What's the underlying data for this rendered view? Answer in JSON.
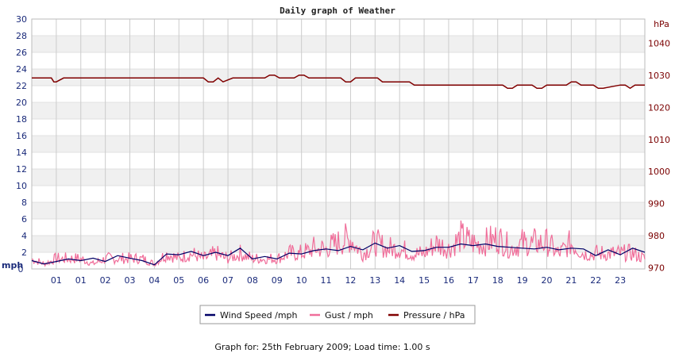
{
  "chart_data": {
    "type": "line",
    "title": "Daily graph of Weather",
    "left_unit": "mph",
    "right_unit": "hPa",
    "left_ylim": [
      0,
      30
    ],
    "left_ticks": [
      0,
      2,
      4,
      6,
      8,
      10,
      12,
      14,
      16,
      18,
      20,
      22,
      24,
      26,
      28,
      30
    ],
    "right_ylim": [
      969.6,
      1047.6
    ],
    "right_ticks": [
      970,
      980,
      990,
      1000,
      1010,
      1020,
      1030,
      1040
    ],
    "x_ticks": [
      "01",
      "01",
      "02",
      "03",
      "04",
      "05",
      "06",
      "07",
      "08",
      "09",
      "10",
      "11",
      "12",
      "13",
      "14",
      "15",
      "16",
      "17",
      "18",
      "19",
      "20",
      "21",
      "22",
      "23"
    ],
    "grid": true,
    "legend_placement": "bottom-center",
    "series": [
      {
        "name": "Wind Speed /mph",
        "color": "#000066",
        "axis": "left",
        "x": [
          0,
          0.5,
          1,
          1.5,
          2,
          2.5,
          3,
          3.5,
          4,
          4.5,
          5,
          5.5,
          6,
          6.5,
          7,
          7.5,
          8,
          8.5,
          9,
          9.5,
          10,
          10.5,
          11,
          11.5,
          12,
          12.5,
          13,
          13.5,
          14,
          14.5,
          15,
          15.5,
          16,
          16.5,
          17,
          17.5,
          18,
          18.5,
          19,
          19.5,
          20,
          20.5,
          21,
          21.5,
          22,
          22.5,
          23,
          23.5,
          24,
          24.5,
          25
        ],
        "values": [
          1.0,
          0.6,
          0.9,
          1.2,
          1.0,
          1.3,
          0.9,
          1.6,
          1.3,
          1.0,
          0.5,
          1.8,
          1.7,
          2.1,
          1.6,
          2.0,
          1.6,
          2.5,
          1.2,
          1.5,
          1.2,
          1.9,
          1.8,
          2.2,
          2.4,
          2.2,
          2.7,
          2.3,
          3.1,
          2.5,
          2.8,
          2.1,
          2.2,
          2.6,
          2.6,
          3.0,
          2.8,
          3.0,
          2.7,
          2.6,
          2.5,
          2.4,
          2.6,
          2.3,
          2.5,
          2.4,
          1.6,
          2.3,
          1.7,
          2.5,
          2.0
        ]
      },
      {
        "name": "Gust / mph",
        "color": "#f06e9a",
        "axis": "left",
        "x": [
          0,
          0.5,
          1,
          1.5,
          2,
          2.5,
          3,
          3.5,
          4,
          4.5,
          5,
          5.5,
          6,
          6.5,
          7,
          7.5,
          8,
          8.5,
          9,
          9.5,
          10,
          10.5,
          11,
          11.5,
          12,
          12.5,
          13,
          13.5,
          14,
          14.5,
          15,
          15.5,
          16,
          16.5,
          17,
          17.5,
          18,
          18.5,
          19,
          19.5,
          20,
          20.5,
          21,
          21.5,
          22,
          22.5,
          23,
          23.5,
          24,
          24.5,
          25
        ],
        "values": [
          2.0,
          1.0,
          2.0,
          2.0,
          2.0,
          1.0,
          2.0,
          2.0,
          2.0,
          2.0,
          1.0,
          3.0,
          2.0,
          3.0,
          2.0,
          3.0,
          2.0,
          3.0,
          2.0,
          2.0,
          2.0,
          3.0,
          3.0,
          4.0,
          4.0,
          5.0,
          6.0,
          3.0,
          5.0,
          4.0,
          4.0,
          3.0,
          3.0,
          5.0,
          4.0,
          6.0,
          5.0,
          5.0,
          6.0,
          4.0,
          5.0,
          5.0,
          5.0,
          3.0,
          5.0,
          3.0,
          3.0,
          3.0,
          3.0,
          3.0,
          2.0
        ]
      },
      {
        "name": "Pressure / hPa",
        "color": "#800000",
        "axis": "right",
        "x": [
          0,
          0.8,
          0.9,
          1.0,
          1.3,
          7.0,
          7.2,
          7.4,
          7.6,
          7.8,
          8.2,
          8.5,
          9.5,
          9.7,
          9.9,
          10.1,
          10.7,
          10.9,
          11.1,
          11.3,
          12.6,
          12.8,
          13.0,
          13.2,
          14.1,
          14.3,
          15.4,
          15.6,
          19.2,
          19.4,
          19.6,
          19.8,
          20.4,
          20.6,
          20.8,
          21.0,
          21.8,
          22.0,
          22.2,
          22.4,
          22.9,
          23.1,
          23.3,
          24.0,
          24.2,
          24.4,
          24.6,
          25.0
        ],
        "values": [
          1029.2,
          1029.2,
          1028.0,
          1028.0,
          1029.2,
          1029.2,
          1028.0,
          1028.0,
          1029.2,
          1028.0,
          1029.2,
          1029.2,
          1029.2,
          1030.1,
          1030.1,
          1029.2,
          1029.2,
          1030.1,
          1030.1,
          1029.2,
          1029.2,
          1028.0,
          1028.0,
          1029.2,
          1029.2,
          1028.0,
          1028.0,
          1027.0,
          1027.0,
          1026.0,
          1026.0,
          1027.0,
          1027.0,
          1026.0,
          1026.0,
          1027.0,
          1027.0,
          1028.0,
          1028.0,
          1027.0,
          1027.0,
          1026.0,
          1026.0,
          1027.0,
          1027.0,
          1026.0,
          1027.0,
          1027.0
        ]
      }
    ]
  },
  "footer": "Graph for: 25th February 2009; Load time: 1.00 s"
}
